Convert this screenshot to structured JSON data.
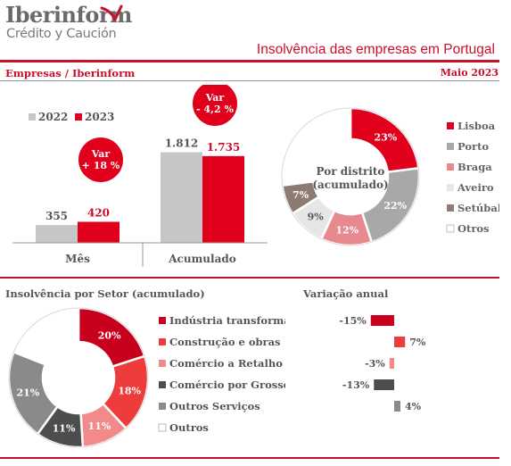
{
  "brand": {
    "name": "Iberinform",
    "subtitle": "Crédito y Caución",
    "accent_color": "#c8102e",
    "logo_icon": "swoosh-arrow-icon"
  },
  "header": {
    "title": "Insolvência das empresas em Portugal",
    "section_left": "Empresas / Iberinform",
    "period": "Maio 2023"
  },
  "chart_data": [
    {
      "type": "bar",
      "categories": [
        "Mês",
        "Acumulado"
      ],
      "series": [
        {
          "name": "2022",
          "values": [
            355,
            1812
          ],
          "labels": [
            "355",
            "1.812"
          ],
          "color": "#c6c6c6"
        },
        {
          "name": "2023",
          "values": [
            420,
            1735
          ],
          "labels": [
            "420",
            "1.735"
          ],
          "color": "#e0001b"
        }
      ],
      "annotations": [
        {
          "category": "Mês",
          "line1": "Var",
          "line2": "+ 18 %"
        },
        {
          "category": "Acumulado",
          "line1": "Var",
          "line2": "- 4,2 %"
        }
      ],
      "ylim": [
        0,
        2000
      ],
      "legend": "top-left"
    },
    {
      "type": "pie",
      "title": "Por distrito (acumulado)",
      "title_lines": [
        "Por distrito",
        "(acumulado)"
      ],
      "slices": [
        {
          "name": "Lisboa",
          "value": 23,
          "label": "23%",
          "color": "#e0001b"
        },
        {
          "name": "Porto",
          "value": 22,
          "label": "22%",
          "color": "#a8a8a8"
        },
        {
          "name": "Braga",
          "value": 12,
          "label": "12%",
          "color": "#e8898f"
        },
        {
          "name": "Aveiro",
          "value": 9,
          "label": "9%",
          "color": "#e6e6e6"
        },
        {
          "name": "Setúbal",
          "value": 7,
          "label": "7%",
          "color": "#8c7b72"
        },
        {
          "name": "Otros",
          "value": 27,
          "label": "",
          "color": "#ffffff"
        }
      ],
      "legend": "right"
    },
    {
      "type": "pie",
      "title": "Insolvência por Setor (acumulado)",
      "slices": [
        {
          "name": "Indústria transformadora",
          "value": 20,
          "label": "20%",
          "color": "#c8001e"
        },
        {
          "name": "Construção e obras",
          "value": 18,
          "label": "18%",
          "color": "#ee3b3b"
        },
        {
          "name": "Comércio a Retalho",
          "value": 11,
          "label": "11%",
          "color": "#f28a8a"
        },
        {
          "name": "Comércio por Grosso",
          "value": 11,
          "label": "11%",
          "color": "#4d4d4d"
        },
        {
          "name": "Outros Serviços",
          "value": 21,
          "label": "21%",
          "color": "#8a8a8a"
        },
        {
          "name": "Outros",
          "value": 19,
          "label": "",
          "color": "#ffffff"
        }
      ],
      "legend": "right"
    },
    {
      "type": "bar",
      "orientation": "horizontal",
      "title": "Variação anual",
      "categories": [
        "Indústria transformadora",
        "Construção e obras",
        "Comércio a Retalho",
        "Comércio por Grosso",
        "Outros Serviços"
      ],
      "values": [
        -15,
        7,
        -3,
        -13,
        4
      ],
      "labels": [
        "-15%",
        "7%",
        "-3%",
        "-13%",
        "4%"
      ],
      "colors": [
        "#c8001e",
        "#ee3b3b",
        "#f28a8a",
        "#4d4d4d",
        "#8a8a8a"
      ]
    }
  ]
}
